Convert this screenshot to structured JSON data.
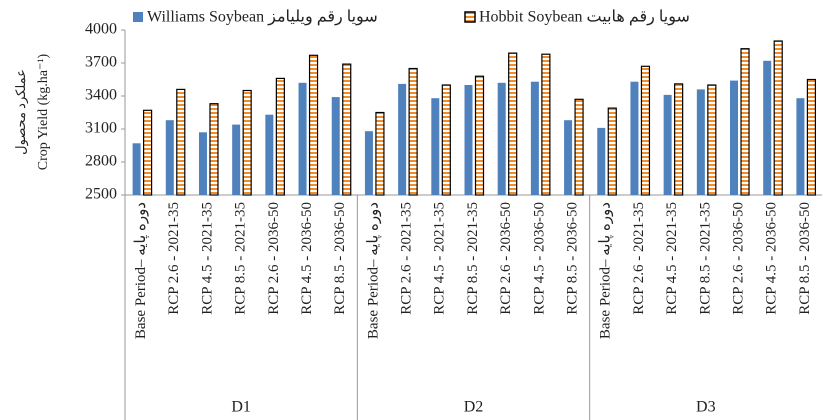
{
  "chart_data": {
    "type": "bar",
    "ylabel": "Crop Yield (kg.ha⁻¹)",
    "ylabel_fa": "عملکرد محصول",
    "categories": [
      "Base Period– دوره پایه",
      "RCP 2.6 - 2021-35",
      "RCP 4.5 - 2021-35",
      "RCP 8.5 - 2021-35",
      "RCP 2.6 - 2036-50",
      "RCP 4.5 - 2036-50",
      "RCP 8.5 - 2036-50",
      "Base Period– دوره پایه",
      "RCP 2.6 - 2021-35",
      "RCP 4.5 - 2021-35",
      "RCP 8.5 - 2021-35",
      "RCP 2.6 - 2036-50",
      "RCP 4.5 - 2036-50",
      "RCP 8.5 - 2036-50",
      "Base Period– دوره پایه",
      "RCP 2.6 - 2021-35",
      "RCP 4.5 - 2021-35",
      "RCP 8.5 - 2021-35",
      "RCP 2.6 - 2036-50",
      "RCP 4.5 - 2036-50",
      "RCP 8.5 - 2036-50"
    ],
    "category_groups": [
      "D1",
      "D2",
      "D3"
    ],
    "series": [
      {
        "name": "Williams  Soybean سویا رقم ویلیامز",
        "color": "#4f81bd",
        "values": [
          2970,
          3180,
          3070,
          3140,
          3230,
          3520,
          3390,
          3080,
          3510,
          3380,
          3500,
          3520,
          3530,
          3180,
          3110,
          3530,
          3410,
          3460,
          3540,
          3720,
          3380
        ]
      },
      {
        "name": "Hobbit Soybean سویا رقم هابیت",
        "color": "#f28c28",
        "pattern": "stripes",
        "values": [
          3270,
          3460,
          3330,
          3450,
          3560,
          3770,
          3690,
          3250,
          3650,
          3500,
          3580,
          3790,
          3780,
          3370,
          3290,
          3670,
          3510,
          3500,
          3830,
          3900,
          3550
        ]
      }
    ],
    "ylim": [
      2500,
      4000
    ],
    "yticks": [
      2500,
      2800,
      3100,
      3400,
      3700,
      4000
    ],
    "grid": false
  }
}
